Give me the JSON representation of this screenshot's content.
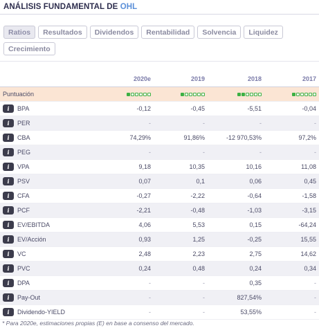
{
  "header": {
    "title_prefix": "ANÁLISIS FUNDAMENTAL DE ",
    "company": "OHL"
  },
  "tabs": [
    {
      "label": "Ratios",
      "active": true
    },
    {
      "label": "Resultados",
      "active": false
    },
    {
      "label": "Dividendos",
      "active": false
    },
    {
      "label": "Rentabilidad",
      "active": false
    },
    {
      "label": "Solvencia",
      "active": false
    },
    {
      "label": "Liquidez",
      "active": false
    },
    {
      "label": "Crecimiento",
      "active": false
    }
  ],
  "table": {
    "columns": [
      "2020e",
      "2019",
      "2018",
      "2017"
    ],
    "score_row": {
      "label": "Puntuación",
      "scores": [
        1,
        1,
        2,
        1
      ],
      "max_score": 6
    },
    "rows": [
      {
        "label": "BPA",
        "values": [
          "-0,12",
          "-0,45",
          "-5,51",
          "-0,04"
        ]
      },
      {
        "label": "PER",
        "values": [
          "-",
          "-",
          "-",
          "-"
        ]
      },
      {
        "label": "CBA",
        "values": [
          "74,29%",
          "91,86%",
          "-12 970,53%",
          "97,2%"
        ]
      },
      {
        "label": "PEG",
        "values": [
          "-",
          "-",
          "-",
          "-"
        ]
      },
      {
        "label": "VPA",
        "values": [
          "9,18",
          "10,35",
          "10,16",
          "11,08"
        ]
      },
      {
        "label": "PSV",
        "values": [
          "0,07",
          "0,1",
          "0,06",
          "0,45"
        ]
      },
      {
        "label": "CFA",
        "values": [
          "-0,27",
          "-2,22",
          "-0,64",
          "-1,58"
        ]
      },
      {
        "label": "PCF",
        "values": [
          "-2,21",
          "-0,48",
          "-1,03",
          "-3,15"
        ]
      },
      {
        "label": "EV/EBITDA",
        "values": [
          "4,06",
          "5,53",
          "0,15",
          "-64,24"
        ]
      },
      {
        "label": "EV/Acción",
        "values": [
          "0,93",
          "1,25",
          "-0,25",
          "15,55"
        ]
      },
      {
        "label": "VC",
        "values": [
          "2,48",
          "2,23",
          "2,75",
          "14,62"
        ]
      },
      {
        "label": "PVC",
        "values": [
          "0,24",
          "0,48",
          "0,24",
          "0,34"
        ]
      },
      {
        "label": "DPA",
        "values": [
          "-",
          "-",
          "0,35",
          "-"
        ]
      },
      {
        "label": "Pay-Out",
        "values": [
          "-",
          "-",
          "827,54%",
          "-"
        ]
      },
      {
        "label": "Dividendo-YIELD",
        "values": [
          "-",
          "-",
          "53,55%",
          "-"
        ]
      }
    ]
  },
  "footnote": "* Para 2020e, estimaciones propias (E) en base a consenso del mercado.",
  "icons": {
    "info": "info-icon",
    "score": "score-dots"
  },
  "colors": {
    "accent": "#5a8fd8",
    "score_green": "#3cb043",
    "score_row_bg": "#fbe5d4",
    "stripe_bg": "#f0f0f5"
  }
}
